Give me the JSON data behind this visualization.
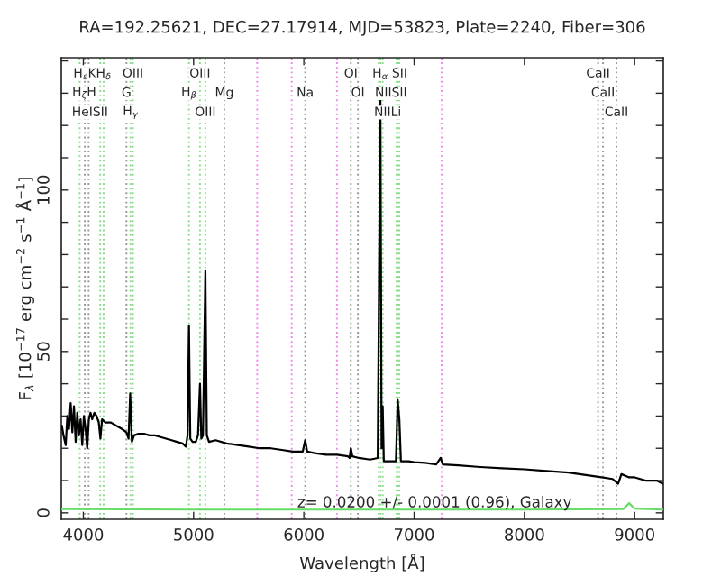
{
  "chart_data": {
    "type": "line",
    "title": "RA=192.25621, DEC=27.17914, MJD=53823, Plate=2240, Fiber=306",
    "xlabel": "Wavelength [Å]",
    "ylabel": "F$_{λ}$ [10$^{−17}$ erg cm$^{−2}$ s$^{−1}$ Å$^{−1}$]",
    "xlim": [
      3800,
      9260
    ],
    "ylim": [
      -2,
      141
    ],
    "xticks": [
      4000,
      5000,
      6000,
      7000,
      8000,
      9000
    ],
    "yticks": [
      0,
      {
        "value": 10,
        "label": null
      },
      {
        "value": 20,
        "label": null
      },
      {
        "value": 30,
        "label": null
      },
      {
        "value": 40,
        "label": null
      },
      50,
      {
        "value": 60,
        "label": null
      },
      {
        "value": 70,
        "label": null
      },
      {
        "value": 80,
        "label": null
      },
      {
        "value": 90,
        "label": null
      },
      100,
      {
        "value": 110,
        "label": null
      },
      {
        "value": 120,
        "label": null
      },
      {
        "value": 130,
        "label": null
      },
      {
        "value": 140,
        "label": null
      }
    ],
    "grid": false,
    "legend": false,
    "series": [
      {
        "color": "#000000",
        "x": [
          3805,
          3820,
          3840,
          3855,
          3870,
          3885,
          3900,
          3915,
          3930,
          3945,
          3960,
          3975,
          3990,
          4005,
          4020,
          4035,
          4050,
          4065,
          4080,
          4100,
          4120,
          4140,
          4155,
          4170,
          4200,
          4250,
          4300,
          4350,
          4390,
          4410,
          4425,
          4440,
          4460,
          4500,
          4550,
          4600,
          4650,
          4700,
          4750,
          4800,
          4850,
          4900,
          4930,
          4945,
          4958,
          4970,
          4990,
          5020,
          5040,
          5058,
          5070,
          5085,
          5107,
          5120,
          5140,
          5200,
          5300,
          5400,
          5500,
          5600,
          5700,
          5800,
          5900,
          5990,
          6012,
          6030,
          6100,
          6200,
          6300,
          6400,
          6415,
          6426,
          6440,
          6500,
          6600,
          6670,
          6694,
          6705,
          6715,
          6725,
          6800,
          6835,
          6851,
          6866,
          6880,
          6950,
          7000,
          7100,
          7200,
          7240,
          7260,
          7400,
          7600,
          7800,
          8000,
          8200,
          8400,
          8600,
          8700,
          8800,
          8850,
          8880,
          8950,
          9000,
          9100,
          9200,
          9255
        ],
        "values": [
          27,
          24,
          21,
          30,
          26,
          34,
          25,
          33,
          22,
          31,
          24,
          29,
          21,
          30,
          26,
          20,
          29,
          31,
          29,
          31,
          30,
          28,
          23,
          29,
          28,
          28,
          27,
          26,
          25,
          23,
          37,
          22,
          24,
          24.5,
          24.5,
          24,
          24,
          23.5,
          23,
          22.5,
          22,
          21.5,
          20.5,
          24,
          58,
          23,
          22,
          22,
          24,
          40,
          23,
          24,
          75,
          24,
          22,
          22.5,
          21.5,
          21,
          20.5,
          20,
          20,
          19.5,
          19,
          19,
          22.5,
          19,
          18.5,
          18,
          18,
          17.5,
          17,
          20,
          17.5,
          17,
          16.5,
          17,
          129,
          20,
          33,
          16,
          16,
          16,
          35,
          29,
          16,
          16,
          15.7,
          15.5,
          15,
          17,
          15,
          14.7,
          14.2,
          13.8,
          13.5,
          13,
          12.5,
          11.5,
          11,
          10.5,
          9,
          12,
          11,
          11,
          10,
          10,
          9
        ]
      },
      {
        "color": "#66dd66",
        "x": [
          3805,
          5000,
          8000,
          8900,
          8950,
          9000,
          9255
        ],
        "values": [
          1.2,
          1,
          1,
          1.2,
          3,
          1.3,
          1
        ]
      }
    ],
    "ref_lines": [
      {
        "axis": "x",
        "value": 3967,
        "color": "#88dd88",
        "line_style": "dotted"
      },
      {
        "axis": "x",
        "value": 4013,
        "color": "#999999",
        "line_style": "dotted"
      },
      {
        "axis": "x",
        "value": 4048,
        "color": "#999999",
        "line_style": "dotted"
      },
      {
        "axis": "x",
        "value": 4153,
        "color": "#88dd88",
        "line_style": "dotted"
      },
      {
        "axis": "x",
        "value": 4184,
        "color": "#88dd88",
        "line_style": "dotted"
      },
      {
        "axis": "x",
        "value": 4391,
        "color": "#999999",
        "line_style": "dotted"
      },
      {
        "axis": "x",
        "value": 4427,
        "color": "#88dd88",
        "line_style": "dotted"
      },
      {
        "axis": "x",
        "value": 4450,
        "color": "#88dd88",
        "line_style": "dotted"
      },
      {
        "axis": "x",
        "value": 4958,
        "color": "#88dd88",
        "line_style": "dotted"
      },
      {
        "axis": "x",
        "value": 5058,
        "color": "#88dd88",
        "line_style": "dotted"
      },
      {
        "axis": "x",
        "value": 5107,
        "color": "#88dd88",
        "line_style": "dotted"
      },
      {
        "axis": "x",
        "value": 5279,
        "color": "#999999",
        "line_style": "dotted"
      },
      {
        "axis": "x",
        "value": 5577,
        "color": "#ee88ee",
        "line_style": "dotted"
      },
      {
        "axis": "x",
        "value": 5890,
        "color": "#ee88ee",
        "line_style": "dotted"
      },
      {
        "axis": "x",
        "value": 6012,
        "color": "#999999",
        "line_style": "dotted"
      },
      {
        "axis": "x",
        "value": 6300,
        "color": "#ee88ee",
        "line_style": "dotted"
      },
      {
        "axis": "x",
        "value": 6426,
        "color": "#999999",
        "line_style": "dotted"
      },
      {
        "axis": "x",
        "value": 6490,
        "color": "#999999",
        "line_style": "dotted"
      },
      {
        "axis": "x",
        "value": 6679,
        "color": "#88dd88",
        "line_style": "dotted"
      },
      {
        "axis": "x",
        "value": 6694,
        "color": "#88dd88",
        "line_style": "dotted"
      },
      {
        "axis": "x",
        "value": 6715,
        "color": "#88dd88",
        "line_style": "dotted"
      },
      {
        "axis": "x",
        "value": 6841,
        "color": "#88dd88",
        "line_style": "dotted"
      },
      {
        "axis": "x",
        "value": 6851,
        "color": "#88dd88",
        "line_style": "dotted"
      },
      {
        "axis": "x",
        "value": 6866,
        "color": "#88dd88",
        "line_style": "dotted"
      },
      {
        "axis": "x",
        "value": 7250,
        "color": "#ee88ee",
        "line_style": "dotted"
      },
      {
        "axis": "x",
        "value": 8668,
        "color": "#999999",
        "line_style": "dotted"
      },
      {
        "axis": "x",
        "value": 8713,
        "color": "#999999",
        "line_style": "dotted"
      },
      {
        "axis": "x",
        "value": 8835,
        "color": "#999999",
        "line_style": "dotted"
      }
    ],
    "annotations": [
      {
        "text": "H$_{ε}$K",
        "x": 4013,
        "y": 136
      },
      {
        "text": "H$_{δ}$",
        "x": 4184,
        "y": 136
      },
      {
        "text": "OIII",
        "x": 4450,
        "y": 136
      },
      {
        "text": "OIII",
        "x": 5058,
        "y": 136
      },
      {
        "text": "OI",
        "x": 6426,
        "y": 136
      },
      {
        "text": "H$_{α}$ SII",
        "x": 6780,
        "y": 136
      },
      {
        "text": "CaII",
        "x": 8668,
        "y": 136
      },
      {
        "text": "H$_{ζ}$H",
        "x": 4008,
        "y": 130
      },
      {
        "text": "G",
        "x": 4391,
        "y": 130
      },
      {
        "text": "H$_{β}$",
        "x": 4958,
        "y": 130
      },
      {
        "text": "Mg",
        "x": 5279,
        "y": 130
      },
      {
        "text": "Na",
        "x": 6012,
        "y": 130
      },
      {
        "text": "OI",
        "x": 6490,
        "y": 130
      },
      {
        "text": "NIISII",
        "x": 6790,
        "y": 130
      },
      {
        "text": "CaII",
        "x": 8713,
        "y": 130
      },
      {
        "text": "HeISII",
        "x": 4060,
        "y": 124
      },
      {
        "text": "H$_{γ}$",
        "x": 4427,
        "y": 124
      },
      {
        "text": "OIII",
        "x": 5107,
        "y": 124
      },
      {
        "text": "NIILi",
        "x": 6760,
        "y": 124
      },
      {
        "text": "CaII",
        "x": 8835,
        "y": 124
      },
      "z= 0.0200 +/- 0.0001 (0.96), Galaxy"
    ]
  }
}
